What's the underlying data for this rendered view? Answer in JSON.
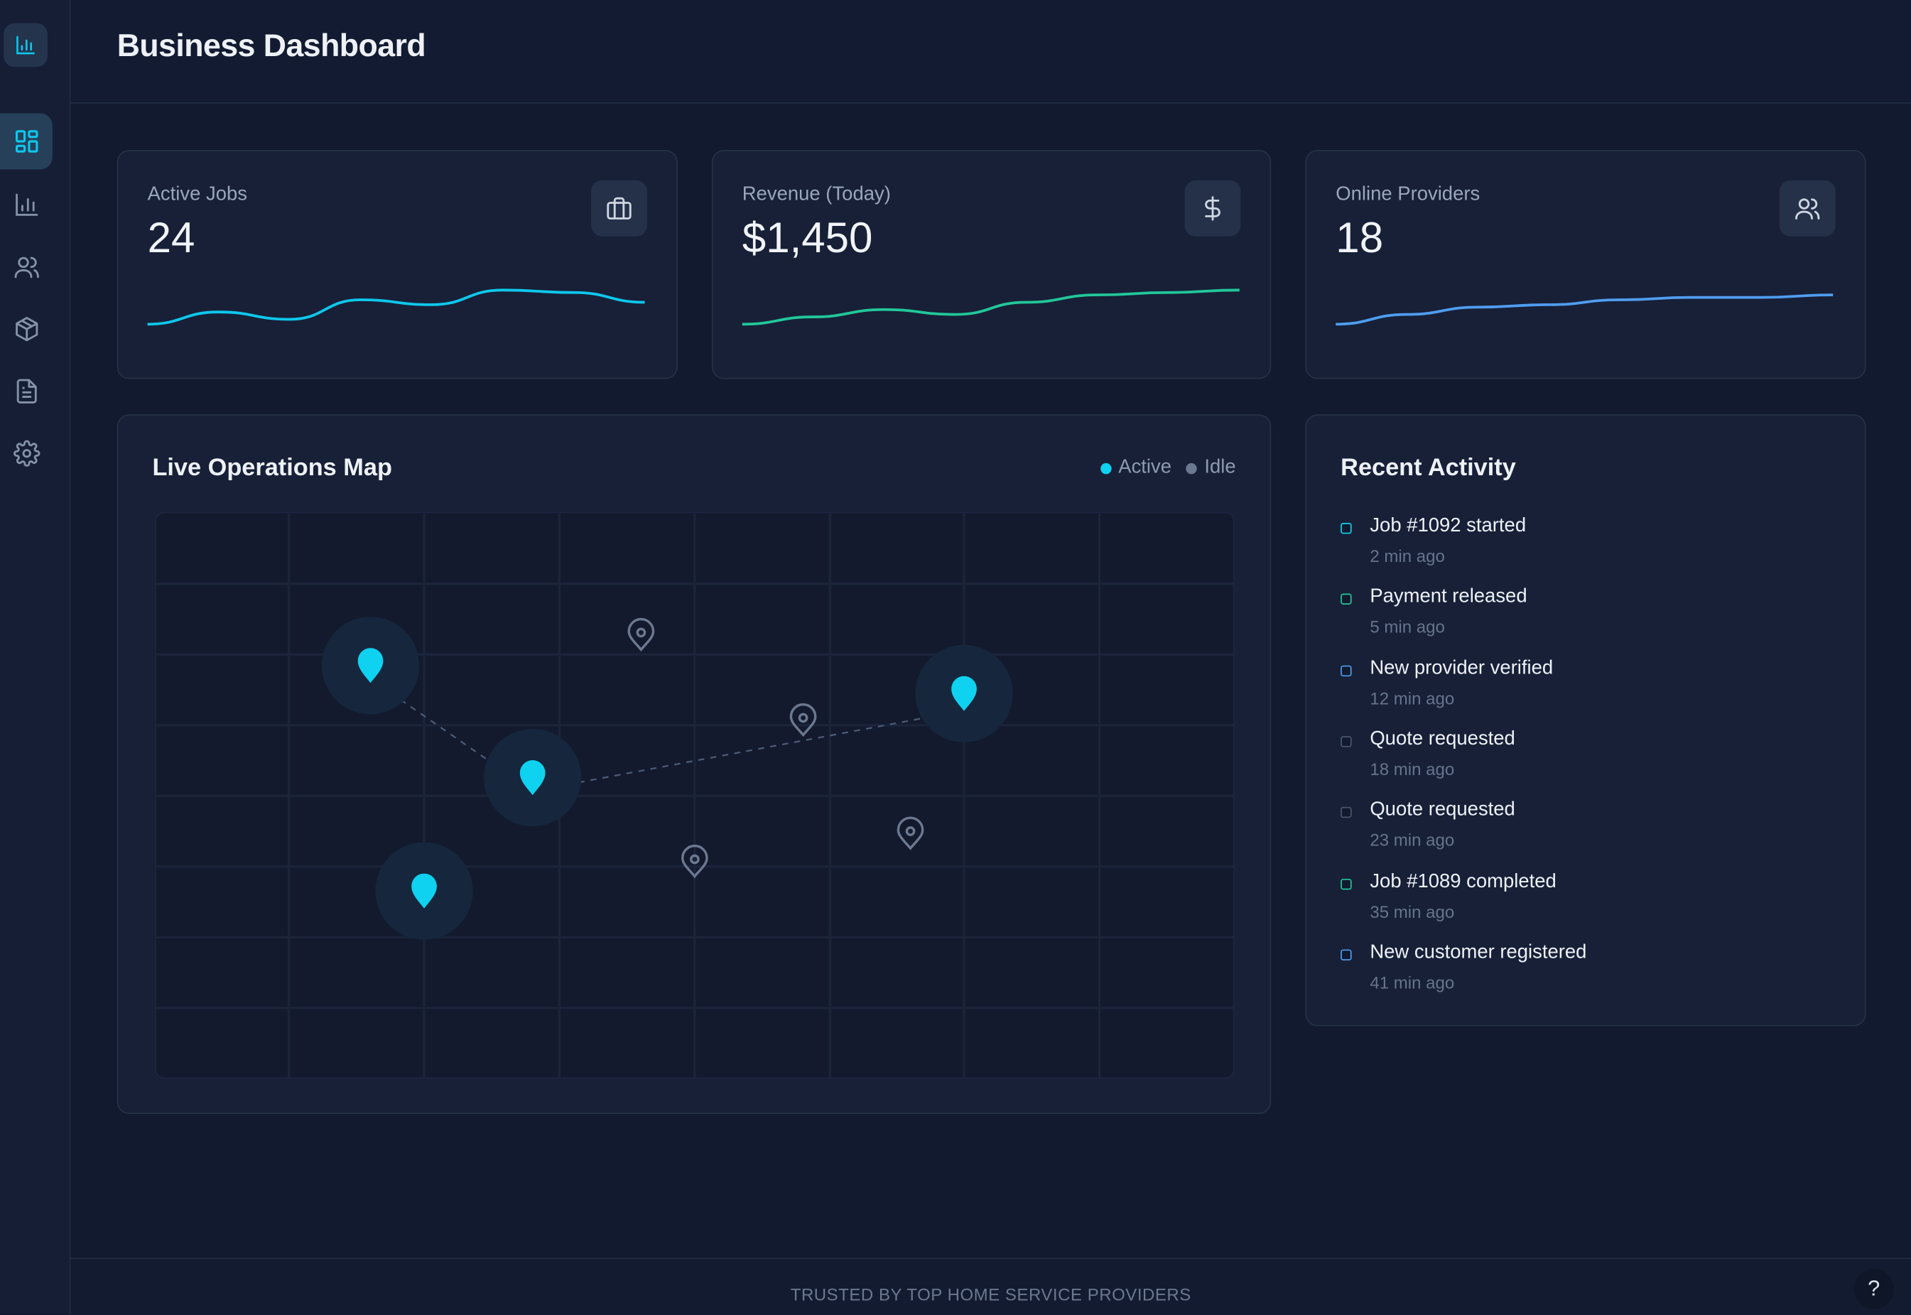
{
  "header": {
    "title": "Business Dashboard"
  },
  "sidebar": {
    "logo_icon": "bar-chart-icon",
    "items": [
      {
        "icon": "dashboard-grid-icon",
        "active": true
      },
      {
        "icon": "bar-chart-icon",
        "active": false
      },
      {
        "icon": "users-icon",
        "active": false
      },
      {
        "icon": "package-icon",
        "active": false
      },
      {
        "icon": "document-icon",
        "active": false
      },
      {
        "icon": "settings-gear-icon",
        "active": false
      }
    ]
  },
  "kpis": [
    {
      "label": "Active Jobs",
      "value": "24",
      "icon": "briefcase-icon",
      "color": "#0ec8ec",
      "trend": [
        2,
        7,
        4,
        12,
        10,
        16,
        15,
        11
      ]
    },
    {
      "label": "Revenue (Today)",
      "value": "$1,450",
      "icon": "dollar-icon",
      "color": "#22c79a",
      "trend": [
        2,
        5,
        8,
        6,
        11,
        14,
        15,
        16
      ]
    },
    {
      "label": "Online Providers",
      "value": "18",
      "icon": "users-icon",
      "color": "#4f9df0",
      "trend": [
        2,
        6,
        9,
        10,
        12,
        13,
        13,
        14
      ]
    }
  ],
  "map": {
    "title": "Live Operations Map",
    "legend": [
      {
        "label": "Active",
        "color": "#0ed2f0"
      },
      {
        "label": "Idle",
        "color": "#6b7890"
      }
    ]
  },
  "activity": {
    "title": "Recent Activity",
    "items": [
      {
        "text": "Job #1092 started",
        "time": "2 min ago",
        "color": "#0ed2f0"
      },
      {
        "text": "Payment released",
        "time": "5 min ago",
        "color": "#22c79a"
      },
      {
        "text": "New provider verified",
        "time": "12 min ago",
        "color": "#4f9df0"
      },
      {
        "text": "Quote requested",
        "time": "18 min ago",
        "color": "#4a5570"
      },
      {
        "text": "Quote requested",
        "time": "23 min ago",
        "color": "#4a5570"
      },
      {
        "text": "Job #1089 completed",
        "time": "35 min ago",
        "color": "#22c79a"
      },
      {
        "text": "New customer registered",
        "time": "41 min ago",
        "color": "#4f9df0"
      }
    ]
  },
  "footer": {
    "text": "TRUSTED BY TOP HOME SERVICE PROVIDERS",
    "help_label": "?"
  }
}
